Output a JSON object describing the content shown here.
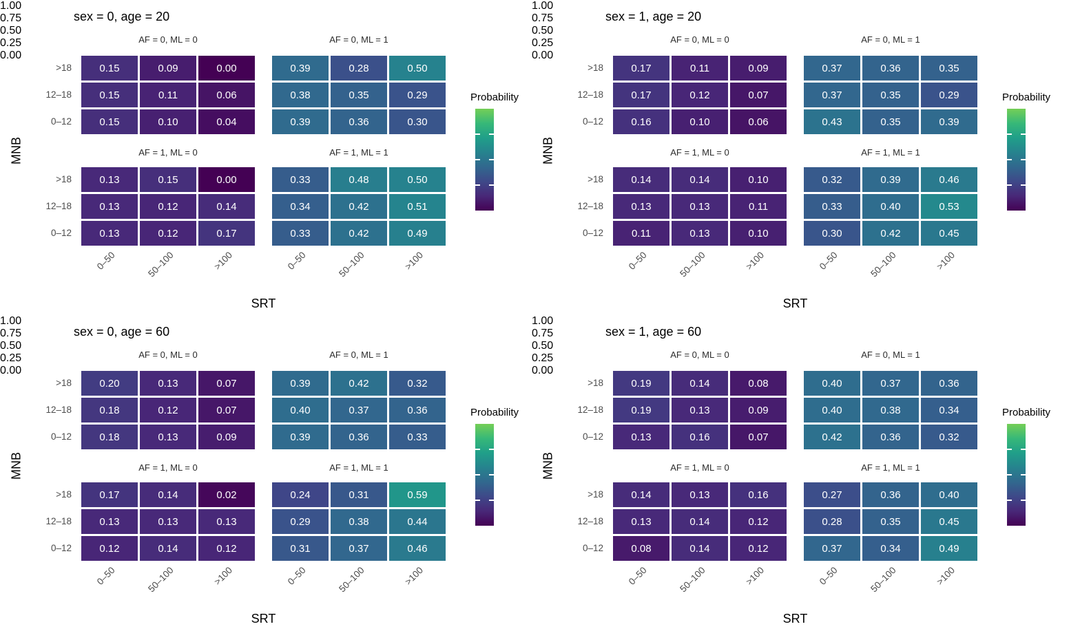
{
  "figure": {
    "x_axis_title": "SRT",
    "y_axis_title": "MNB",
    "x_tick_labels": [
      "0–50",
      "50–100",
      ">100"
    ],
    "y_tick_labels": [
      ">18",
      "12–18",
      "0–12"
    ],
    "legend": {
      "title": "Probability",
      "tick_labels": [
        "1.00",
        "0.75",
        "0.50",
        "0.25",
        "0.00"
      ],
      "tick_values": [
        1.0,
        0.75,
        0.5,
        0.25,
        0.0
      ]
    }
  },
  "colors": {
    "background": "#ffffff",
    "cell_text": "#ffffff",
    "tick_text": "#4d4d4d",
    "strip_text": "#2b2b2b",
    "title_text": "#000000",
    "viridis_stops": [
      "#440154",
      "#482878",
      "#3e4989",
      "#31688e",
      "#26828e",
      "#1f9e89",
      "#35b779",
      "#6ece58",
      "#fde725"
    ],
    "legend_gradient_end": 0.88
  },
  "chart_data": [
    {
      "type": "heatmap",
      "title": "sex = 0, age = 20",
      "xlabel": "SRT",
      "ylabel": "MNB",
      "x_categories": [
        "0–50",
        "50–100",
        ">100"
      ],
      "y_categories": [
        ">18",
        "12–18",
        "0–12"
      ],
      "value_range": [
        0,
        1
      ],
      "legend_title": "Probability",
      "facets": [
        {
          "label": "AF = 0, ML = 0",
          "rows": [
            [
              0.15,
              0.09,
              0.0
            ],
            [
              0.15,
              0.11,
              0.06
            ],
            [
              0.15,
              0.1,
              0.04
            ]
          ]
        },
        {
          "label": "AF = 0, ML = 1",
          "rows": [
            [
              0.39,
              0.28,
              0.5
            ],
            [
              0.38,
              0.35,
              0.29
            ],
            [
              0.39,
              0.36,
              0.3
            ]
          ]
        },
        {
          "label": "AF = 1, ML = 0",
          "rows": [
            [
              0.13,
              0.15,
              0.0
            ],
            [
              0.13,
              0.12,
              0.14
            ],
            [
              0.13,
              0.12,
              0.17
            ]
          ]
        },
        {
          "label": "AF = 1, ML = 1",
          "rows": [
            [
              0.33,
              0.48,
              0.5
            ],
            [
              0.34,
              0.42,
              0.51
            ],
            [
              0.33,
              0.42,
              0.49
            ]
          ]
        }
      ]
    },
    {
      "type": "heatmap",
      "title": "sex = 1, age = 20",
      "xlabel": "SRT",
      "ylabel": "MNB",
      "x_categories": [
        "0–50",
        "50–100",
        ">100"
      ],
      "y_categories": [
        ">18",
        "12–18",
        "0–12"
      ],
      "value_range": [
        0,
        1
      ],
      "legend_title": "Probability",
      "facets": [
        {
          "label": "AF = 0, ML = 0",
          "rows": [
            [
              0.17,
              0.11,
              0.09
            ],
            [
              0.17,
              0.12,
              0.07
            ],
            [
              0.16,
              0.1,
              0.06
            ]
          ]
        },
        {
          "label": "AF = 0, ML = 1",
          "rows": [
            [
              0.37,
              0.36,
              0.35
            ],
            [
              0.37,
              0.35,
              0.29
            ],
            [
              0.43,
              0.35,
              0.39
            ]
          ]
        },
        {
          "label": "AF = 1, ML = 0",
          "rows": [
            [
              0.14,
              0.14,
              0.1
            ],
            [
              0.13,
              0.13,
              0.11
            ],
            [
              0.11,
              0.13,
              0.1
            ]
          ]
        },
        {
          "label": "AF = 1, ML = 1",
          "rows": [
            [
              0.32,
              0.39,
              0.46
            ],
            [
              0.33,
              0.4,
              0.53
            ],
            [
              0.3,
              0.42,
              0.45
            ]
          ]
        }
      ]
    },
    {
      "type": "heatmap",
      "title": "sex = 0, age = 60",
      "xlabel": "SRT",
      "ylabel": "MNB",
      "x_categories": [
        "0–50",
        "50–100",
        ">100"
      ],
      "y_categories": [
        ">18",
        "12–18",
        "0–12"
      ],
      "value_range": [
        0,
        1
      ],
      "legend_title": "Probability",
      "facets": [
        {
          "label": "AF = 0, ML = 0",
          "rows": [
            [
              0.2,
              0.13,
              0.07
            ],
            [
              0.18,
              0.12,
              0.07
            ],
            [
              0.18,
              0.13,
              0.09
            ]
          ]
        },
        {
          "label": "AF = 0, ML = 1",
          "rows": [
            [
              0.39,
              0.42,
              0.32
            ],
            [
              0.4,
              0.37,
              0.36
            ],
            [
              0.39,
              0.36,
              0.33
            ]
          ]
        },
        {
          "label": "AF = 1, ML = 0",
          "rows": [
            [
              0.17,
              0.14,
              0.02
            ],
            [
              0.13,
              0.13,
              0.13
            ],
            [
              0.12,
              0.14,
              0.12
            ]
          ]
        },
        {
          "label": "AF = 1, ML = 1",
          "rows": [
            [
              0.24,
              0.31,
              0.59
            ],
            [
              0.29,
              0.38,
              0.44
            ],
            [
              0.31,
              0.37,
              0.46
            ]
          ]
        }
      ]
    },
    {
      "type": "heatmap",
      "title": "sex = 1, age = 60",
      "xlabel": "SRT",
      "ylabel": "MNB",
      "x_categories": [
        "0–50",
        "50–100",
        ">100"
      ],
      "y_categories": [
        ">18",
        "12–18",
        "0–12"
      ],
      "value_range": [
        0,
        1
      ],
      "legend_title": "Probability",
      "facets": [
        {
          "label": "AF = 0, ML = 0",
          "rows": [
            [
              0.19,
              0.14,
              0.08
            ],
            [
              0.19,
              0.13,
              0.09
            ],
            [
              0.13,
              0.16,
              0.07
            ]
          ]
        },
        {
          "label": "AF = 0, ML = 1",
          "rows": [
            [
              0.4,
              0.37,
              0.36
            ],
            [
              0.4,
              0.38,
              0.34
            ],
            [
              0.42,
              0.36,
              0.32
            ]
          ]
        },
        {
          "label": "AF = 1, ML = 0",
          "rows": [
            [
              0.14,
              0.13,
              0.16
            ],
            [
              0.13,
              0.14,
              0.12
            ],
            [
              0.08,
              0.14,
              0.12
            ]
          ]
        },
        {
          "label": "AF = 1, ML = 1",
          "rows": [
            [
              0.27,
              0.36,
              0.4
            ],
            [
              0.28,
              0.35,
              0.45
            ],
            [
              0.37,
              0.34,
              0.49
            ]
          ]
        }
      ]
    }
  ]
}
